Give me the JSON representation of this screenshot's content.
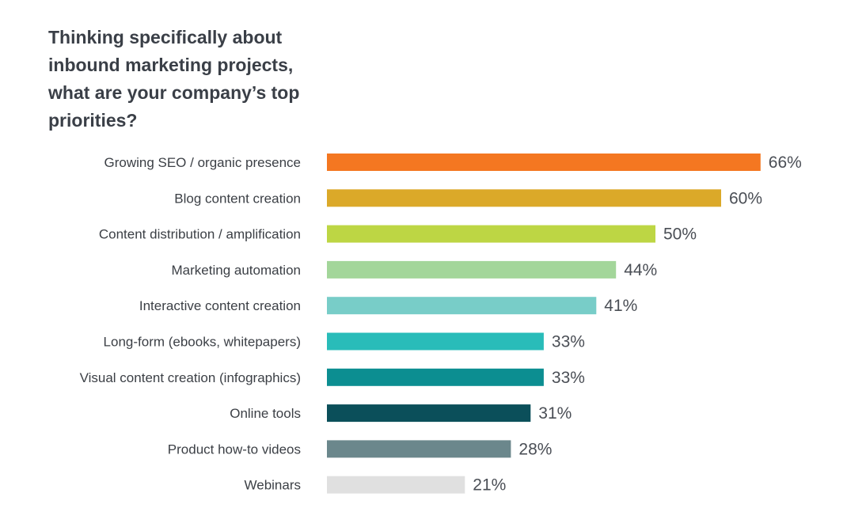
{
  "chart_data": {
    "type": "bar",
    "orientation": "horizontal",
    "title": "Thinking specifically about inbound marketing projects, what are your company’s top priorities?",
    "xlabel": "",
    "ylabel": "",
    "xlim": [
      0,
      70
    ],
    "grid": false,
    "categories": [
      "Growing SEO / organic presence",
      "Blog content creation",
      "Content distribution / amplification",
      "Marketing automation",
      "Interactive content creation",
      "Long-form (ebooks, whitepapers)",
      "Visual content creation (infographics)",
      "Online tools",
      "Product how-to videos",
      "Webinars"
    ],
    "values": [
      66,
      60,
      50,
      44,
      41,
      33,
      33,
      31,
      28,
      21
    ],
    "value_labels": [
      "66%",
      "60%",
      "50%",
      "44%",
      "41%",
      "33%",
      "33%",
      "31%",
      "28%",
      "21%"
    ],
    "colors": [
      "#f47721",
      "#dba929",
      "#bdd644",
      "#a3d69a",
      "#78cdc8",
      "#29bcb9",
      "#0c8e91",
      "#0b4f5a",
      "#6b878c",
      "#e0e0e0"
    ]
  }
}
